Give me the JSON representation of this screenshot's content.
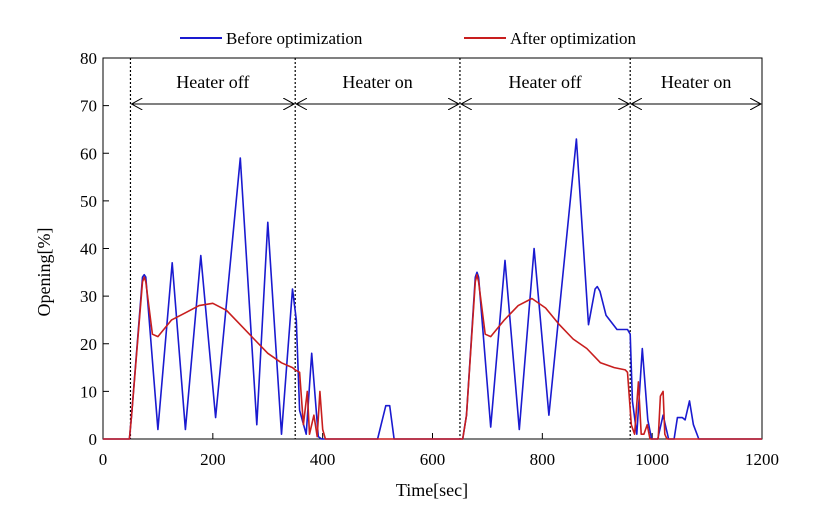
{
  "chart_data": {
    "type": "line",
    "title": "",
    "xlabel": "Time[sec]",
    "ylabel": "Opening[%]",
    "xlim": [
      0,
      1200
    ],
    "ylim": [
      0,
      80
    ],
    "xticks": [
      0,
      200,
      400,
      600,
      800,
      1000,
      1200
    ],
    "yticks": [
      0,
      10,
      20,
      30,
      40,
      50,
      60,
      70,
      80
    ],
    "grid": false,
    "legend": "top",
    "series": [
      {
        "name": "Before optimization",
        "color": "#1a1ad0",
        "x": [
          0,
          48,
          52,
          72,
          75,
          78,
          100,
          126,
          150,
          178,
          205,
          250,
          280,
          300,
          325,
          345,
          352,
          358,
          370,
          380,
          392,
          398,
          405,
          500,
          515,
          522,
          530,
          540,
          655,
          662,
          678,
          681,
          684,
          706,
          732,
          758,
          785,
          812,
          862,
          884,
          896,
          900,
          905,
          916,
          936,
          955,
          960,
          964,
          972,
          982,
          992,
          999,
          1010,
          1020,
          1030,
          1040,
          1046,
          1055,
          1060,
          1068,
          1075,
          1085,
          1092,
          1100,
          1125,
          1140,
          1146,
          1153,
          1160,
          1200
        ],
        "y": [
          0,
          0,
          5,
          34,
          34.5,
          34,
          2,
          37,
          2,
          38.5,
          4.5,
          59,
          3,
          45.5,
          1,
          31.5,
          25,
          6,
          1,
          18,
          0.5,
          0,
          0,
          0,
          7,
          7,
          0,
          0,
          0,
          5,
          34,
          35,
          34,
          2.5,
          37.5,
          2,
          40,
          5,
          63,
          24,
          31.5,
          32,
          31,
          26,
          23,
          23,
          22,
          8,
          1,
          19,
          4,
          0,
          0,
          5,
          0,
          0,
          4.5,
          4.5,
          4,
          8,
          3,
          0,
          0,
          0,
          0,
          0,
          0,
          0,
          0,
          0
        ]
      },
      {
        "name": "After optimization",
        "color": "#c81e1e",
        "x": [
          0,
          48,
          52,
          72,
          75,
          78,
          90,
          100,
          125,
          150,
          175,
          200,
          225,
          250,
          275,
          300,
          325,
          345,
          350,
          358,
          365,
          372,
          376,
          384,
          390,
          395,
          400,
          405,
          410,
          415,
          420,
          500,
          655,
          662,
          678,
          681,
          684,
          696,
          706,
          731,
          756,
          781,
          806,
          831,
          856,
          881,
          906,
          931,
          951,
          955,
          962,
          968,
          975,
          980,
          985,
          991,
          996,
          1005,
          1011,
          1015,
          1020,
          1023,
          1027,
          1032,
          1050,
          1200
        ],
        "y": [
          0,
          0,
          5,
          33,
          34,
          33,
          22,
          21.5,
          25,
          26.5,
          28,
          28.5,
          27,
          24,
          21,
          18,
          16,
          15,
          14.5,
          14,
          3,
          10,
          1,
          5,
          0.5,
          10,
          2,
          0,
          0,
          0,
          0,
          0,
          0,
          5,
          33,
          34.5,
          33,
          22,
          21.5,
          25,
          28,
          29.5,
          27.5,
          24,
          21,
          19,
          16,
          15,
          14.5,
          14,
          3,
          1,
          12,
          1,
          1,
          3,
          0,
          0,
          0,
          9,
          10,
          1,
          0,
          0,
          0,
          0
        ]
      }
    ],
    "phase_boundaries": [
      50,
      350,
      650,
      960
    ],
    "regions": [
      {
        "label": "Heater off",
        "start": 50,
        "end": 350
      },
      {
        "label": "Heater on",
        "start": 350,
        "end": 650
      },
      {
        "label": "Heater off",
        "start": 650,
        "end": 960
      },
      {
        "label": "Heater on",
        "start": 960,
        "end": 1200
      }
    ]
  }
}
